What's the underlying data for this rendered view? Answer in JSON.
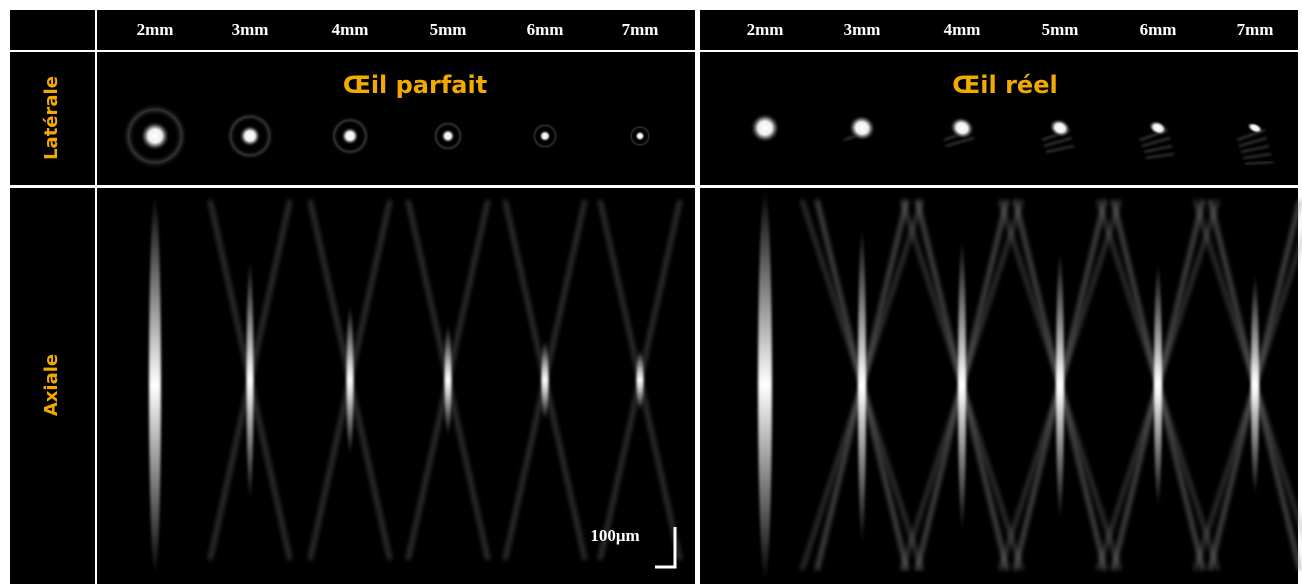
{
  "header": {
    "columns_left": [
      "2mm",
      "3mm",
      "4mm",
      "5mm",
      "6mm",
      "7mm"
    ],
    "columns_right": [
      "2mm",
      "3mm",
      "4mm",
      "5mm",
      "6mm",
      "7mm"
    ]
  },
  "rows": {
    "lateral": "Latérale",
    "axial": "Axiale"
  },
  "panels": [
    {
      "title": "Œil parfait"
    },
    {
      "title": "Œil réel"
    }
  ],
  "scale_bar": "100μm"
}
